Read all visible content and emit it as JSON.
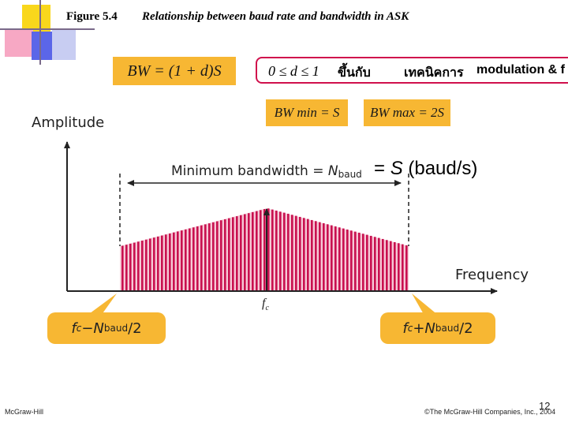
{
  "header": {
    "figure_number": "Figure 5.4",
    "figure_title": "Relationship between baud rate and bandwidth in ASK"
  },
  "formulas": {
    "bw_formula": "BW = (1 + d)S",
    "d_range": "0 ≤ d ≤ 1",
    "thai_word_1": "ขึ้นกับ",
    "thai_word_2": "เทคนิคการ",
    "modulation_text": "modulation & f",
    "bw_min": "BW min = S",
    "bw_max": "BW max = 2S"
  },
  "diagram": {
    "amplitude_label": "Amplitude",
    "frequency_label": "Frequency",
    "min_bw_text": "Minimum bandwidth = ",
    "min_bw_symbol": "N",
    "min_bw_sub": "baud",
    "equals_s_prefix": "= ",
    "equals_s_var": "S",
    "equals_s_suffix": " (baud/s)",
    "fc_symbol": "f",
    "fc_sub": "c",
    "left_pill": {
      "f": "f",
      "c": "c",
      "mid": " − ",
      "n": "N",
      "baud": "baud",
      "tail": "/2"
    },
    "right_pill": {
      "f": "f",
      "c": "c",
      "mid": " + ",
      "n": "N",
      "baud": "baud",
      "tail": "/2"
    },
    "colors": {
      "spectrum": "#c8104f",
      "orange": "#f7b733",
      "pink_bg": "#f6c9d6"
    }
  },
  "footer": {
    "left": "McGraw-Hill",
    "right": "©The McGraw-Hill Companies, Inc., 2004",
    "page": "12"
  }
}
